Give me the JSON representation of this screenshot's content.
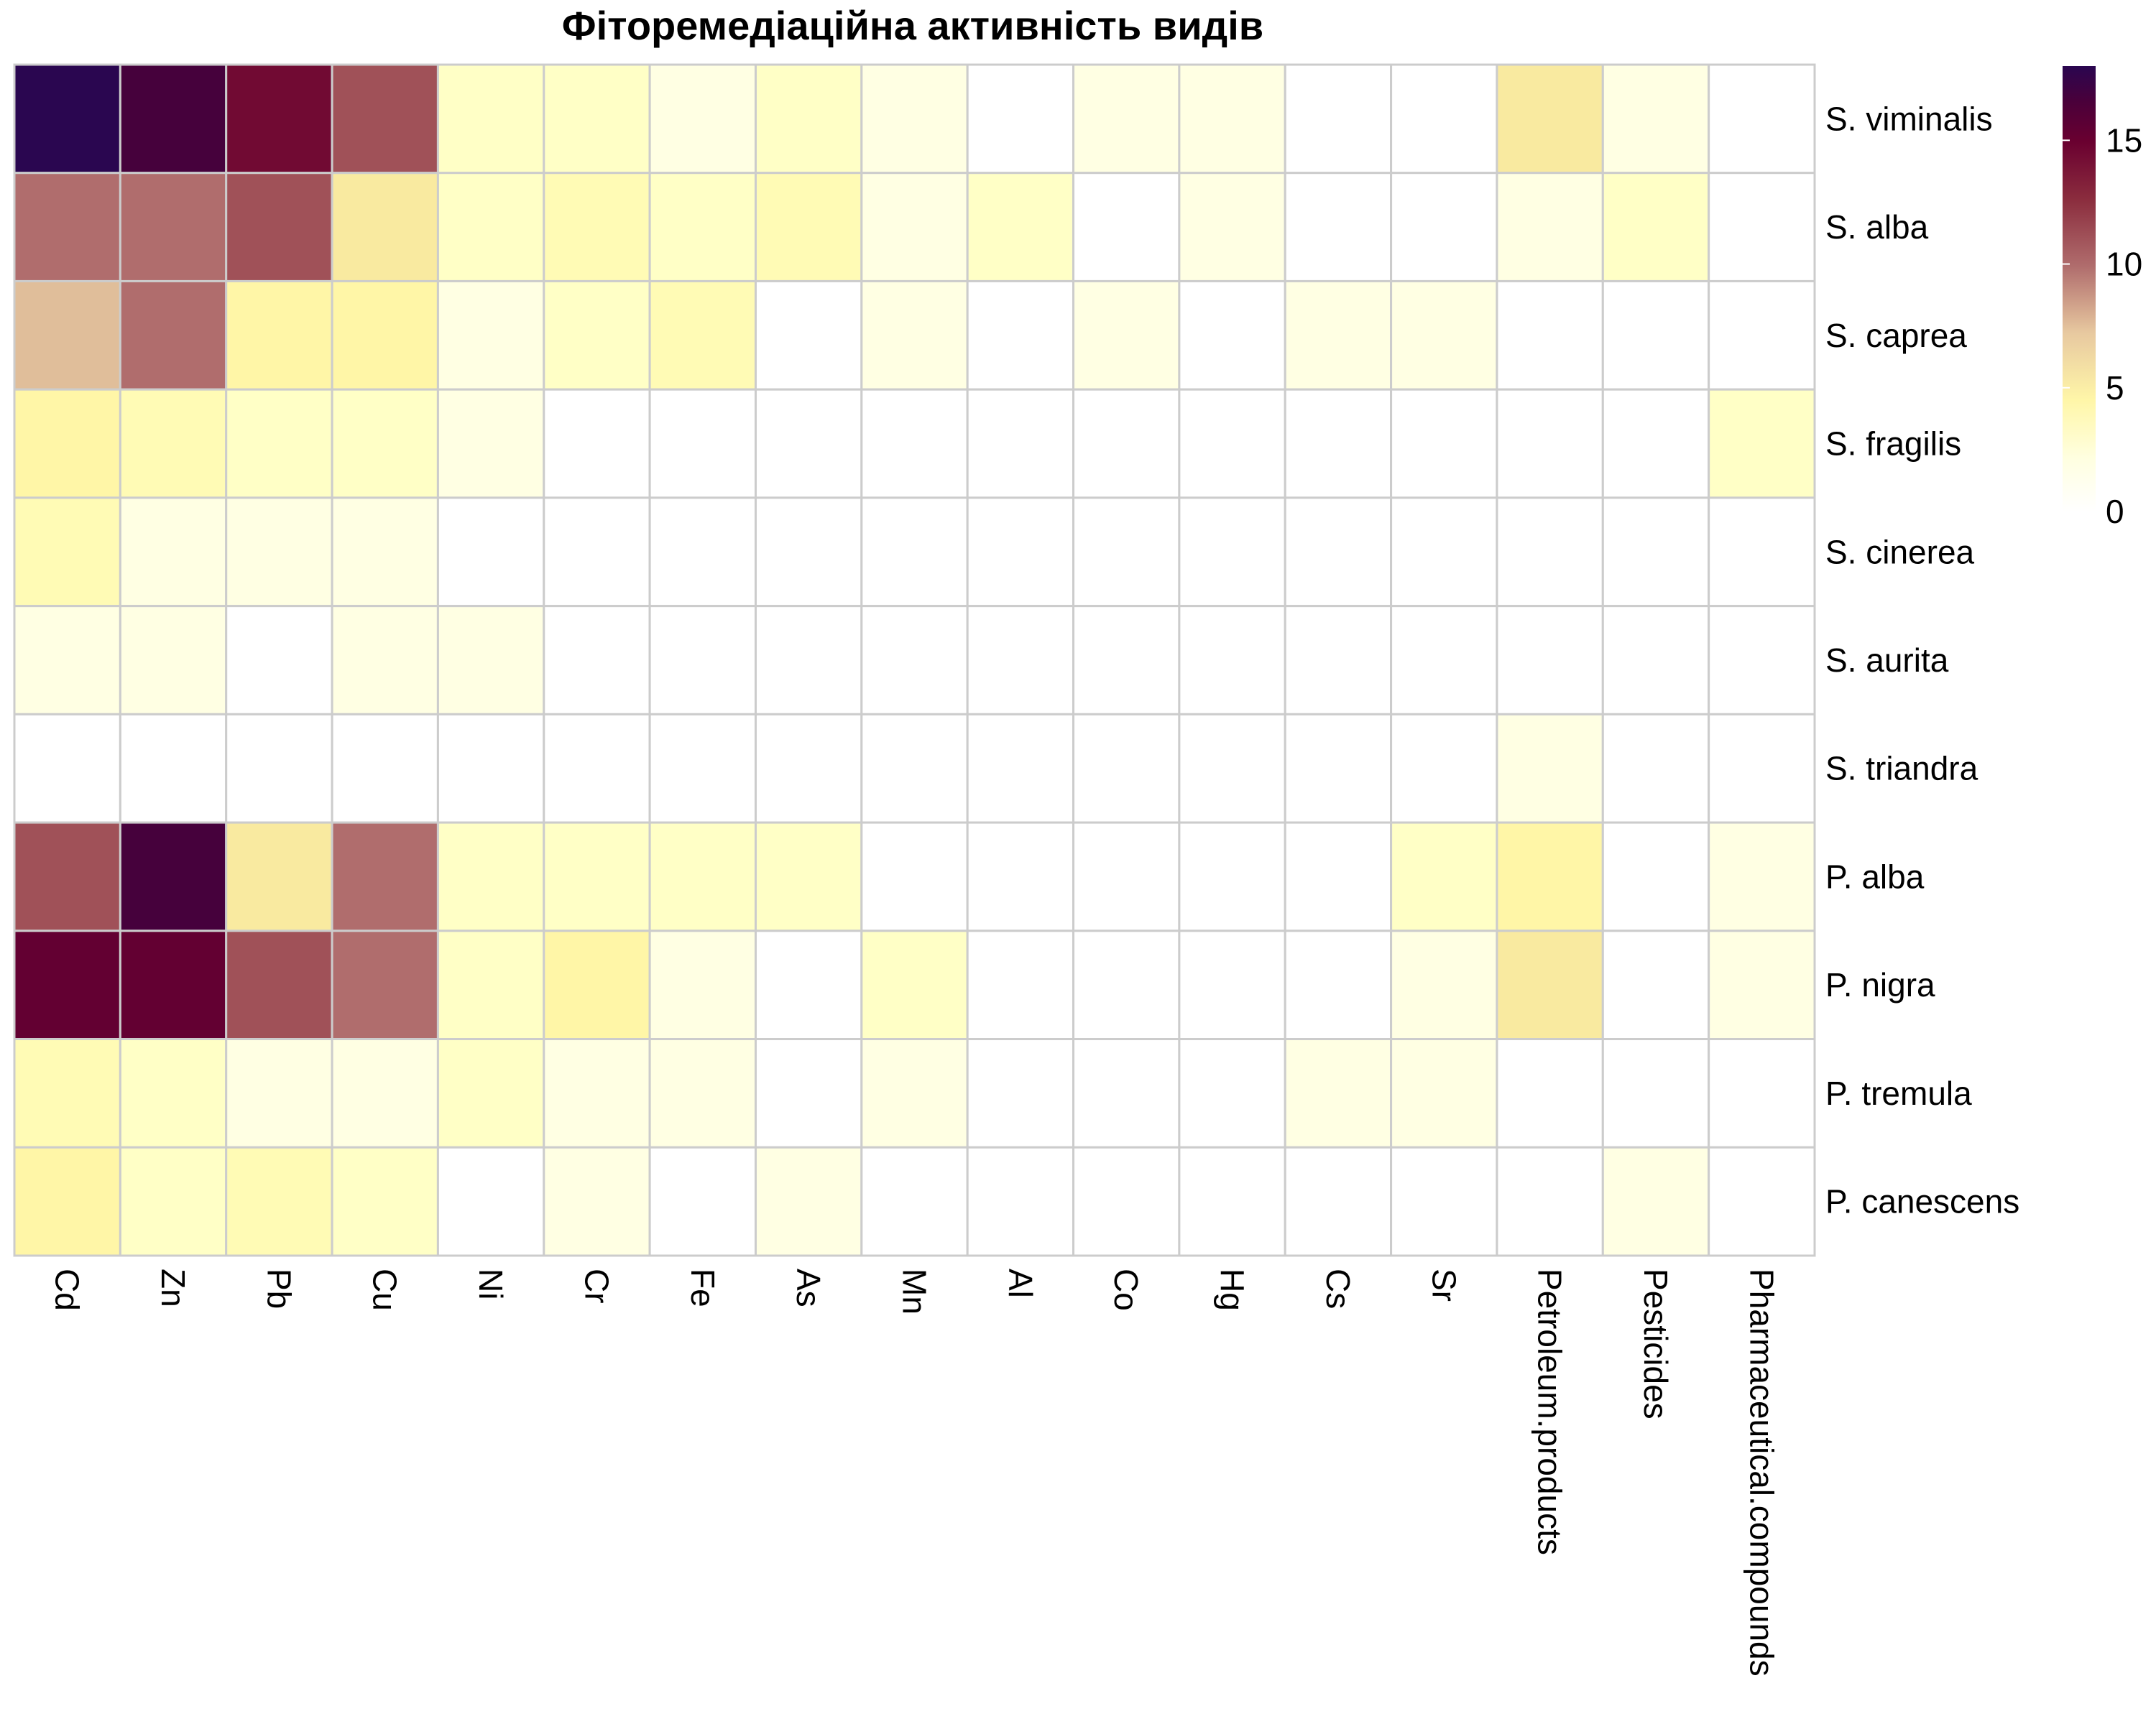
{
  "chart_data": {
    "type": "heatmap",
    "title": "Фіторемедіаційна активність видів",
    "columns": [
      "Cd",
      "Zn",
      "Pb",
      "Cu",
      "Ni",
      "Cr",
      "Fe",
      "As",
      "Mn",
      "Al",
      "Co",
      "Hg",
      "Cs",
      "Sr",
      "Petroleum.products",
      "Pesticides",
      "Pharmaceutical.compounds"
    ],
    "rows": [
      "S. viminalis",
      "S. alba",
      "S. caprea",
      "S. fragilis",
      "S. cinerea",
      "S. aurita",
      "S. triandra",
      "P. alba",
      "P. nigra",
      "P. tremula",
      "P. canescens"
    ],
    "values": [
      [
        18,
        16,
        13,
        10,
        2,
        2,
        1,
        2,
        1,
        0,
        1,
        1,
        0,
        0,
        5,
        1,
        0
      ],
      [
        9,
        9,
        10,
        5,
        2,
        3,
        2,
        3,
        1,
        2,
        0,
        1,
        0,
        0,
        1,
        2,
        0
      ],
      [
        7,
        9,
        4,
        4,
        1,
        2,
        3,
        0,
        1,
        0,
        1,
        0,
        1,
        1,
        0,
        0,
        0
      ],
      [
        4,
        3,
        2,
        2,
        1,
        0,
        0,
        0,
        0,
        0,
        0,
        0,
        0,
        0,
        0,
        0,
        2
      ],
      [
        3,
        1,
        1,
        1,
        0,
        0,
        0,
        0,
        0,
        0,
        0,
        0,
        0,
        0,
        0,
        0,
        0
      ],
      [
        1,
        1,
        0,
        1,
        1,
        0,
        0,
        0,
        0,
        0,
        0,
        0,
        0,
        0,
        0,
        0,
        0
      ],
      [
        0,
        0,
        0,
        0,
        0,
        0,
        0,
        0,
        0,
        0,
        0,
        0,
        0,
        0,
        1,
        0,
        0
      ],
      [
        10,
        16,
        5,
        9,
        2,
        2,
        2,
        2,
        0,
        0,
        0,
        0,
        0,
        2,
        4,
        0,
        1
      ],
      [
        14,
        14,
        10,
        9,
        2,
        4,
        1,
        0,
        2,
        0,
        0,
        0,
        0,
        1,
        5,
        0,
        1
      ],
      [
        3,
        2,
        1,
        1,
        2,
        1,
        1,
        0,
        1,
        0,
        0,
        0,
        1,
        1,
        0,
        0,
        0
      ],
      [
        4,
        2,
        3,
        2,
        0,
        1,
        0,
        1,
        0,
        0,
        0,
        0,
        0,
        0,
        0,
        1,
        0
      ]
    ],
    "legend": {
      "ticks": [
        0,
        5,
        10,
        15
      ],
      "min": 0,
      "max": 18,
      "placement": "top-right"
    },
    "colorscale": [
      "#ffffff",
      "#ffffbf",
      "#fff4a0",
      "#e6c8a0",
      "#b06d6d",
      "#8b2d3e",
      "#6a0030",
      "#4a003a",
      "#2a0650"
    ],
    "grid_color": "#cccccc"
  }
}
